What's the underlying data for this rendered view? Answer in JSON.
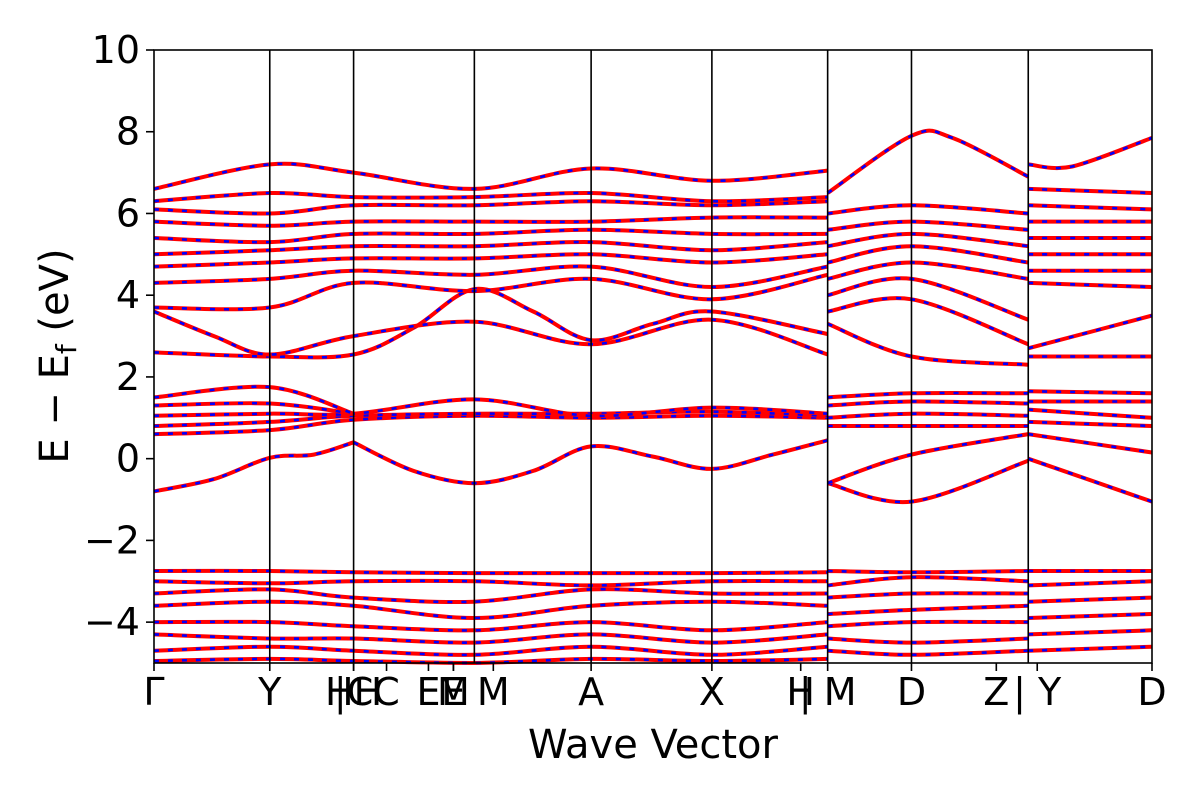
{
  "chart_data": {
    "type": "line",
    "title": "",
    "xlabel": "Wave Vector",
    "ylabel": "E − E",
    "ylabel_sub": "f",
    "ylabel_unit": " (eV)",
    "ylim": [
      -5,
      10
    ],
    "y_ticks": [
      "−4",
      "−2",
      "0",
      "2",
      "4",
      "6",
      "8",
      "10"
    ],
    "y_tick_values": [
      -4,
      -2,
      0,
      2,
      4,
      6,
      8,
      10
    ],
    "xlim": [
      0,
      1
    ],
    "k_points": [
      {
        "label": "Γ",
        "x": 0.0
      },
      {
        "label": "Y",
        "x": 0.116
      },
      {
        "label": "HH",
        "x": 0.2
      },
      {
        "label": "|C",
        "x": 0.2
      },
      {
        "label": "C",
        "x": 0.233
      },
      {
        "label": "E",
        "x": 0.275
      },
      {
        "label": "M",
        "x": 0.3
      },
      {
        "label": "E",
        "x": 0.3
      },
      {
        "label": "M",
        "x": 0.34
      },
      {
        "label": "A",
        "x": 0.438
      },
      {
        "label": "X",
        "x": 0.559
      },
      {
        "label": "H",
        "x": 0.648
      },
      {
        "label": "| M",
        "x": 0.675
      },
      {
        "label": "D",
        "x": 0.759
      },
      {
        "label": "Z",
        "x": 0.844
      },
      {
        "label": "| Y",
        "x": 0.885
      },
      {
        "label": "D",
        "x": 1.0
      }
    ],
    "vertical_lines": [
      0.116,
      0.2,
      0.321,
      0.438,
      0.559,
      0.675,
      0.759,
      0.876
    ],
    "series": [
      {
        "color": "#ff0000",
        "style": "solid"
      },
      {
        "color": "#0000ff",
        "style": "dashed"
      }
    ],
    "bands_valence": [
      [
        [
          0,
          -2.75
        ],
        [
          0.116,
          -2.75
        ],
        [
          0.2,
          -2.78
        ],
        [
          0.321,
          -2.8
        ],
        [
          0.438,
          -2.8
        ],
        [
          0.559,
          -2.8
        ],
        [
          0.675,
          -2.78
        ]
      ],
      [
        [
          0,
          -3.0
        ],
        [
          0.116,
          -3.05
        ],
        [
          0.2,
          -3.0
        ],
        [
          0.321,
          -3.0
        ],
        [
          0.438,
          -3.1
        ],
        [
          0.559,
          -3.0
        ],
        [
          0.675,
          -3.0
        ]
      ],
      [
        [
          0,
          -3.3
        ],
        [
          0.116,
          -3.2
        ],
        [
          0.2,
          -3.4
        ],
        [
          0.321,
          -3.5
        ],
        [
          0.438,
          -3.2
        ],
        [
          0.559,
          -3.3
        ],
        [
          0.675,
          -3.3
        ]
      ],
      [
        [
          0,
          -3.6
        ],
        [
          0.116,
          -3.5
        ],
        [
          0.2,
          -3.6
        ],
        [
          0.321,
          -3.9
        ],
        [
          0.438,
          -3.6
        ],
        [
          0.559,
          -3.5
        ],
        [
          0.675,
          -3.6
        ]
      ],
      [
        [
          0,
          -4.0
        ],
        [
          0.116,
          -4.0
        ],
        [
          0.2,
          -4.1
        ],
        [
          0.321,
          -4.2
        ],
        [
          0.438,
          -4.0
        ],
        [
          0.559,
          -4.2
        ],
        [
          0.675,
          -4.0
        ]
      ],
      [
        [
          0,
          -4.3
        ],
        [
          0.116,
          -4.4
        ],
        [
          0.2,
          -4.4
        ],
        [
          0.321,
          -4.5
        ],
        [
          0.438,
          -4.3
        ],
        [
          0.559,
          -4.5
        ],
        [
          0.675,
          -4.3
        ]
      ],
      [
        [
          0,
          -4.7
        ],
        [
          0.116,
          -4.6
        ],
        [
          0.2,
          -4.7
        ],
        [
          0.321,
          -4.8
        ],
        [
          0.438,
          -4.6
        ],
        [
          0.559,
          -4.8
        ],
        [
          0.675,
          -4.6
        ]
      ],
      [
        [
          0,
          -4.95
        ],
        [
          0.116,
          -4.9
        ],
        [
          0.2,
          -4.95
        ],
        [
          0.321,
          -5.0
        ],
        [
          0.438,
          -4.9
        ],
        [
          0.559,
          -4.95
        ],
        [
          0.675,
          -4.9
        ]
      ],
      [
        [
          0.675,
          -2.75
        ],
        [
          0.759,
          -2.78
        ],
        [
          0.876,
          -2.75
        ]
      ],
      [
        [
          0.675,
          -3.1
        ],
        [
          0.759,
          -2.9
        ],
        [
          0.876,
          -3.0
        ]
      ],
      [
        [
          0.675,
          -3.4
        ],
        [
          0.759,
          -3.3
        ],
        [
          0.876,
          -3.3
        ]
      ],
      [
        [
          0.675,
          -3.8
        ],
        [
          0.759,
          -3.7
        ],
        [
          0.876,
          -3.6
        ]
      ],
      [
        [
          0.675,
          -4.1
        ],
        [
          0.759,
          -4.0
        ],
        [
          0.876,
          -4.0
        ]
      ],
      [
        [
          0.675,
          -4.4
        ],
        [
          0.759,
          -4.5
        ],
        [
          0.876,
          -4.4
        ]
      ],
      [
        [
          0.675,
          -4.7
        ],
        [
          0.759,
          -4.8
        ],
        [
          0.876,
          -4.7
        ]
      ],
      [
        [
          0.876,
          -2.75
        ],
        [
          1.0,
          -2.75
        ]
      ],
      [
        [
          0.876,
          -3.1
        ],
        [
          1.0,
          -3.0
        ]
      ],
      [
        [
          0.876,
          -3.5
        ],
        [
          1.0,
          -3.4
        ]
      ],
      [
        [
          0.876,
          -3.9
        ],
        [
          1.0,
          -3.8
        ]
      ],
      [
        [
          0.876,
          -4.3
        ],
        [
          1.0,
          -4.2
        ]
      ],
      [
        [
          0.876,
          -4.7
        ],
        [
          1.0,
          -4.6
        ]
      ]
    ],
    "bands_conduction": [
      [
        [
          0,
          -0.8
        ],
        [
          0.06,
          -0.5
        ],
        [
          0.116,
          0.02
        ],
        [
          0.16,
          0.1
        ],
        [
          0.2,
          0.4
        ]
      ],
      [
        [
          0.2,
          0.4
        ],
        [
          0.26,
          -0.3
        ],
        [
          0.321,
          -0.6
        ],
        [
          0.38,
          -0.3
        ],
        [
          0.438,
          0.3
        ],
        [
          0.5,
          0.05
        ],
        [
          0.559,
          -0.25
        ],
        [
          0.62,
          0.1
        ],
        [
          0.675,
          0.45
        ]
      ],
      [
        [
          0,
          0.6
        ],
        [
          0.116,
          0.7
        ],
        [
          0.2,
          0.95
        ],
        [
          0.321,
          1.05
        ],
        [
          0.438,
          1.0
        ],
        [
          0.559,
          1.05
        ],
        [
          0.675,
          1.0
        ]
      ],
      [
        [
          0,
          0.8
        ],
        [
          0.116,
          0.9
        ],
        [
          0.2,
          1.05
        ],
        [
          0.321,
          1.1
        ],
        [
          0.438,
          1.1
        ],
        [
          0.559,
          1.15
        ],
        [
          0.675,
          1.05
        ]
      ],
      [
        [
          0,
          1.05
        ],
        [
          0.116,
          1.1
        ],
        [
          0.2,
          1.1
        ],
        [
          0.321,
          1.45
        ],
        [
          0.438,
          1.05
        ],
        [
          0.559,
          1.25
        ],
        [
          0.675,
          1.1
        ]
      ],
      [
        [
          0,
          1.3
        ],
        [
          0.116,
          1.35
        ],
        [
          0.2,
          1.1
        ]
      ],
      [
        [
          0,
          1.5
        ],
        [
          0.116,
          1.75
        ],
        [
          0.2,
          1.1
        ]
      ],
      [
        [
          0,
          2.6
        ],
        [
          0.116,
          2.5
        ],
        [
          0.2,
          2.55
        ],
        [
          0.26,
          3.2
        ],
        [
          0.321,
          4.15
        ],
        [
          0.38,
          3.6
        ],
        [
          0.438,
          2.9
        ],
        [
          0.5,
          3.3
        ],
        [
          0.559,
          3.6
        ],
        [
          0.675,
          3.05
        ]
      ],
      [
        [
          0,
          3.6
        ],
        [
          0.06,
          3.0
        ],
        [
          0.116,
          2.55
        ],
        [
          0.2,
          3.0
        ],
        [
          0.321,
          3.35
        ],
        [
          0.438,
          2.8
        ],
        [
          0.559,
          3.4
        ],
        [
          0.675,
          2.55
        ]
      ],
      [
        [
          0,
          3.7
        ],
        [
          0.116,
          3.7
        ],
        [
          0.2,
          4.3
        ],
        [
          0.321,
          4.1
        ],
        [
          0.438,
          4.4
        ],
        [
          0.559,
          3.9
        ],
        [
          0.675,
          4.5
        ]
      ],
      [
        [
          0,
          4.3
        ],
        [
          0.116,
          4.4
        ],
        [
          0.2,
          4.6
        ],
        [
          0.321,
          4.5
        ],
        [
          0.438,
          4.7
        ],
        [
          0.559,
          4.2
        ],
        [
          0.675,
          4.7
        ]
      ],
      [
        [
          0,
          4.7
        ],
        [
          0.116,
          4.8
        ],
        [
          0.2,
          4.9
        ],
        [
          0.321,
          4.9
        ],
        [
          0.438,
          5.0
        ],
        [
          0.559,
          4.8
        ],
        [
          0.675,
          5.0
        ]
      ],
      [
        [
          0,
          5.0
        ],
        [
          0.116,
          5.1
        ],
        [
          0.2,
          5.2
        ],
        [
          0.321,
          5.2
        ],
        [
          0.438,
          5.3
        ],
        [
          0.559,
          5.1
        ],
        [
          0.675,
          5.3
        ]
      ],
      [
        [
          0,
          5.4
        ],
        [
          0.116,
          5.3
        ],
        [
          0.2,
          5.5
        ],
        [
          0.321,
          5.5
        ],
        [
          0.438,
          5.6
        ],
        [
          0.559,
          5.5
        ],
        [
          0.675,
          5.5
        ]
      ],
      [
        [
          0,
          5.8
        ],
        [
          0.116,
          5.7
        ],
        [
          0.2,
          5.8
        ],
        [
          0.321,
          5.8
        ],
        [
          0.438,
          5.8
        ],
        [
          0.559,
          5.9
        ],
        [
          0.675,
          5.9
        ]
      ],
      [
        [
          0,
          6.1
        ],
        [
          0.116,
          6.0
        ],
        [
          0.2,
          6.2
        ],
        [
          0.321,
          6.2
        ],
        [
          0.438,
          6.3
        ],
        [
          0.559,
          6.2
        ],
        [
          0.675,
          6.3
        ]
      ],
      [
        [
          0,
          6.3
        ],
        [
          0.116,
          6.5
        ],
        [
          0.2,
          6.4
        ],
        [
          0.321,
          6.4
        ],
        [
          0.438,
          6.5
        ],
        [
          0.559,
          6.3
        ],
        [
          0.675,
          6.4
        ]
      ],
      [
        [
          0,
          6.6
        ],
        [
          0.116,
          7.2
        ],
        [
          0.2,
          7.0
        ],
        [
          0.321,
          6.6
        ],
        [
          0.438,
          7.1
        ],
        [
          0.559,
          6.8
        ],
        [
          0.675,
          7.05
        ]
      ],
      [
        [
          0.675,
          -0.6
        ],
        [
          0.759,
          -1.05
        ],
        [
          0.876,
          -0.05
        ]
      ],
      [
        [
          0.675,
          -0.6
        ],
        [
          0.759,
          0.1
        ],
        [
          0.876,
          0.6
        ]
      ],
      [
        [
          0.675,
          0.8
        ],
        [
          0.759,
          0.8
        ],
        [
          0.876,
          0.8
        ]
      ],
      [
        [
          0.675,
          1.0
        ],
        [
          0.759,
          1.1
        ],
        [
          0.876,
          1.05
        ]
      ],
      [
        [
          0.675,
          1.3
        ],
        [
          0.759,
          1.4
        ],
        [
          0.876,
          1.35
        ]
      ],
      [
        [
          0.675,
          1.5
        ],
        [
          0.759,
          1.6
        ],
        [
          0.876,
          1.6
        ]
      ],
      [
        [
          0.675,
          3.3
        ],
        [
          0.759,
          2.5
        ],
        [
          0.876,
          2.3
        ]
      ],
      [
        [
          0.675,
          3.6
        ],
        [
          0.759,
          3.9
        ],
        [
          0.876,
          2.8
        ]
      ],
      [
        [
          0.675,
          4.0
        ],
        [
          0.759,
          4.4
        ],
        [
          0.876,
          3.4
        ]
      ],
      [
        [
          0.675,
          4.4
        ],
        [
          0.759,
          4.8
        ],
        [
          0.876,
          4.4
        ]
      ],
      [
        [
          0.675,
          4.8
        ],
        [
          0.759,
          5.2
        ],
        [
          0.876,
          4.8
        ]
      ],
      [
        [
          0.675,
          5.2
        ],
        [
          0.759,
          5.5
        ],
        [
          0.876,
          5.2
        ]
      ],
      [
        [
          0.675,
          5.6
        ],
        [
          0.759,
          5.8
        ],
        [
          0.876,
          5.6
        ]
      ],
      [
        [
          0.675,
          6.0
        ],
        [
          0.759,
          6.2
        ],
        [
          0.876,
          6.0
        ]
      ],
      [
        [
          0.675,
          6.5
        ],
        [
          0.759,
          7.9
        ],
        [
          0.8,
          7.85
        ],
        [
          0.876,
          6.9
        ]
      ],
      [
        [
          0.876,
          0.0
        ],
        [
          1.0,
          -1.05
        ]
      ],
      [
        [
          0.876,
          0.6
        ],
        [
          1.0,
          0.15
        ]
      ],
      [
        [
          0.876,
          0.9
        ],
        [
          1.0,
          0.8
        ]
      ],
      [
        [
          0.876,
          1.2
        ],
        [
          1.0,
          1.0
        ]
      ],
      [
        [
          0.876,
          1.4
        ],
        [
          1.0,
          1.4
        ]
      ],
      [
        [
          0.876,
          1.65
        ],
        [
          1.0,
          1.6
        ]
      ],
      [
        [
          0.876,
          2.5
        ],
        [
          1.0,
          2.5
        ]
      ],
      [
        [
          0.876,
          2.7
        ],
        [
          1.0,
          3.5
        ]
      ],
      [
        [
          0.876,
          4.3
        ],
        [
          1.0,
          4.2
        ]
      ],
      [
        [
          0.876,
          4.6
        ],
        [
          1.0,
          4.6
        ]
      ],
      [
        [
          0.876,
          5.0
        ],
        [
          1.0,
          5.0
        ]
      ],
      [
        [
          0.876,
          5.4
        ],
        [
          1.0,
          5.4
        ]
      ],
      [
        [
          0.876,
          5.8
        ],
        [
          1.0,
          5.8
        ]
      ],
      [
        [
          0.876,
          6.2
        ],
        [
          1.0,
          6.1
        ]
      ],
      [
        [
          0.876,
          6.6
        ],
        [
          1.0,
          6.5
        ]
      ],
      [
        [
          0.876,
          7.2
        ],
        [
          0.92,
          7.15
        ],
        [
          1.0,
          7.85
        ]
      ]
    ]
  }
}
